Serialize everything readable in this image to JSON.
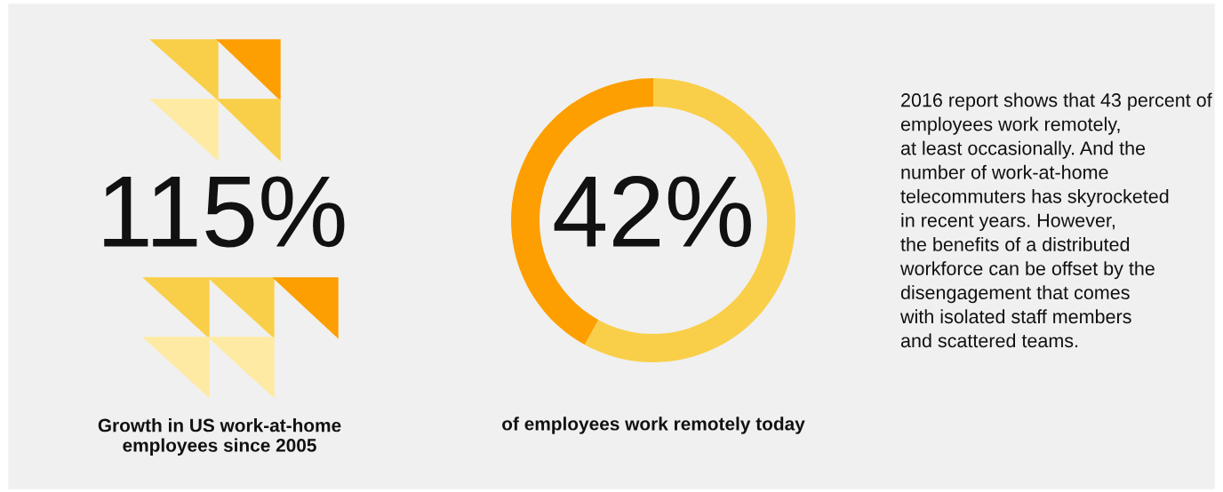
{
  "chart_data": [
    {
      "type": "other",
      "title": "115%",
      "subtitle": "Growth in US work-at-home\nemployees since 2005"
    },
    {
      "type": "donut",
      "categories": [
        null,
        null
      ],
      "values": [
        42,
        58
      ],
      "colors": [
        "#fd9f00",
        "#f9cf4a"
      ],
      "value_labels": [
        "42%",
        null
      ],
      "title": "of employees work remotely today"
    },
    {
      "type": "other",
      "annotations": [
        "2016 report shows that 43 percent of\nemployees work remotely,\nat least occasionally. And the\nnumber of work-at-home\ntelecommuters has skyrocketed\nin recent years. However,\nthe benefits of a distributed\nworkforce can be offset by the\ndisengagement that comes\nwith isolated staff members\nand scattered teams."
      ]
    }
  ]
}
